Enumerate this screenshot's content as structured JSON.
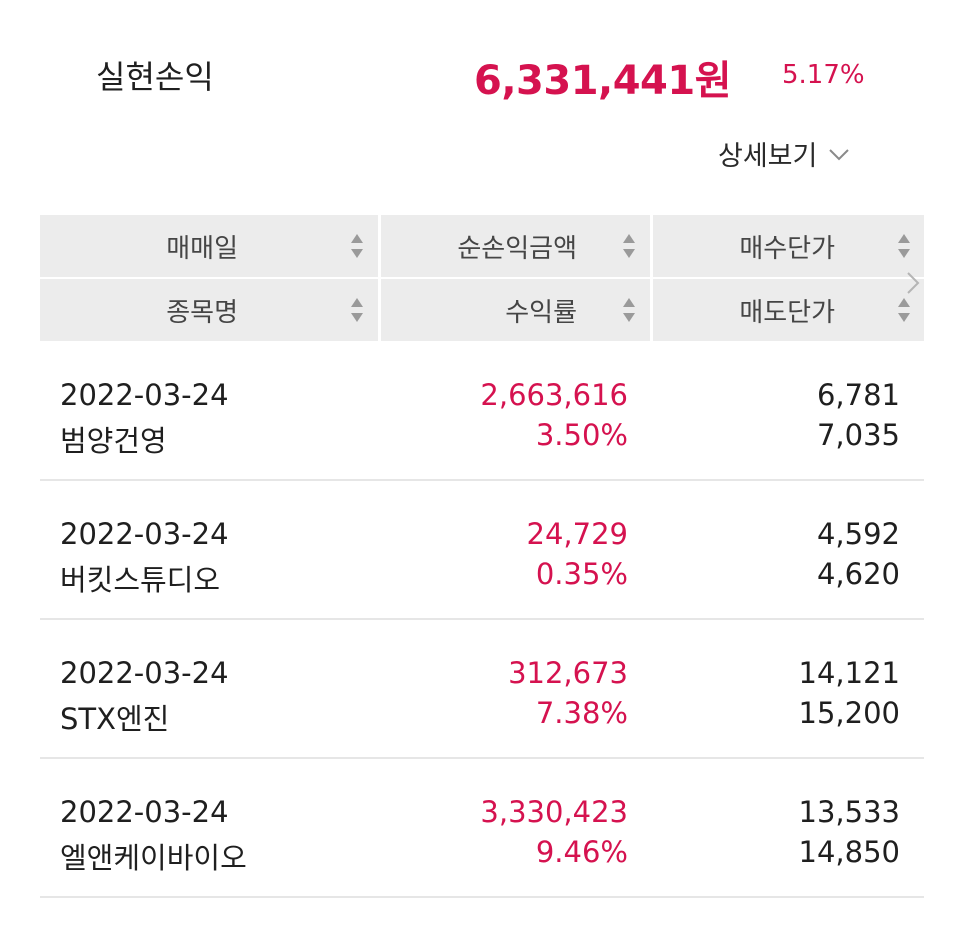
{
  "summary": {
    "label": "실현손익",
    "amount": "6,331,441원",
    "rate": "5.17%"
  },
  "detail_toggle": {
    "label": "상세보기",
    "icon": "chevron-down-icon"
  },
  "colors": {
    "profit": "#d5124f",
    "header_bg": "#ececec",
    "divider": "#e6e6e6"
  },
  "table": {
    "headers": {
      "row1": [
        "매매일",
        "순손익금액",
        "매수단가"
      ],
      "row2": [
        "종목명",
        "수익률",
        "매도단가"
      ]
    },
    "rows": [
      {
        "date": "2022-03-24",
        "name": "범양건영",
        "profit": "2,663,616",
        "rate": "3.50%",
        "buy_price": "6,781",
        "sell_price": "7,035"
      },
      {
        "date": "2022-03-24",
        "name": "버킷스튜디오",
        "profit": "24,729",
        "rate": "0.35%",
        "buy_price": "4,592",
        "sell_price": "4,620"
      },
      {
        "date": "2022-03-24",
        "name": "STX엔진",
        "profit": "312,673",
        "rate": "7.38%",
        "buy_price": "14,121",
        "sell_price": "15,200"
      },
      {
        "date": "2022-03-24",
        "name": "엘앤케이바이오",
        "profit": "3,330,423",
        "rate": "9.46%",
        "buy_price": "13,533",
        "sell_price": "14,850"
      }
    ]
  }
}
